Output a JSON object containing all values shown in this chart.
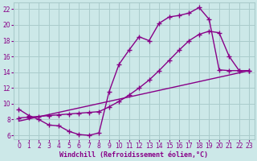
{
  "bg_color": "#cce8e8",
  "grid_color": "#aacccc",
  "line_color": "#880088",
  "title": "Windchill (Refroidissement éolien,°C)",
  "xlim": [
    -0.5,
    23.5
  ],
  "ylim": [
    5.5,
    22.8
  ],
  "xticks": [
    0,
    1,
    2,
    3,
    4,
    5,
    6,
    7,
    8,
    9,
    10,
    11,
    12,
    13,
    14,
    15,
    16,
    17,
    18,
    19,
    20,
    21,
    22,
    23
  ],
  "yticks": [
    6,
    8,
    10,
    12,
    14,
    16,
    18,
    20,
    22
  ],
  "line1_x": [
    0,
    1,
    2,
    3,
    4,
    5,
    6,
    7,
    8,
    9,
    10,
    11,
    12,
    13,
    14,
    15,
    16,
    17,
    18,
    19,
    20,
    21,
    22,
    23
  ],
  "line1_y": [
    9.3,
    8.5,
    8.0,
    7.3,
    7.2,
    6.5,
    6.1,
    6.0,
    6.3,
    11.5,
    15.0,
    16.8,
    18.5,
    18.0,
    20.2,
    21.0,
    21.2,
    21.5,
    22.2,
    20.7,
    14.3,
    14.2,
    14.2,
    14.2
  ],
  "line2_x": [
    0,
    1,
    2,
    3,
    4,
    5,
    6,
    7,
    8,
    9,
    10,
    11,
    12,
    13,
    14,
    15,
    16,
    17,
    18,
    19,
    20,
    21,
    22,
    23
  ],
  "line2_y": [
    8.2,
    8.3,
    8.4,
    8.5,
    8.6,
    8.7,
    8.8,
    8.9,
    9.0,
    9.6,
    10.3,
    11.1,
    12.0,
    13.0,
    14.2,
    15.5,
    16.8,
    18.0,
    18.8,
    19.2,
    19.0,
    16.0,
    14.2,
    14.2
  ],
  "line3_x": [
    0,
    23
  ],
  "line3_y": [
    7.8,
    14.2
  ],
  "marker": "+",
  "markersize": 4,
  "linewidth": 1.0,
  "tick_fontsize": 5.5,
  "xlabel_fontsize": 6.0
}
